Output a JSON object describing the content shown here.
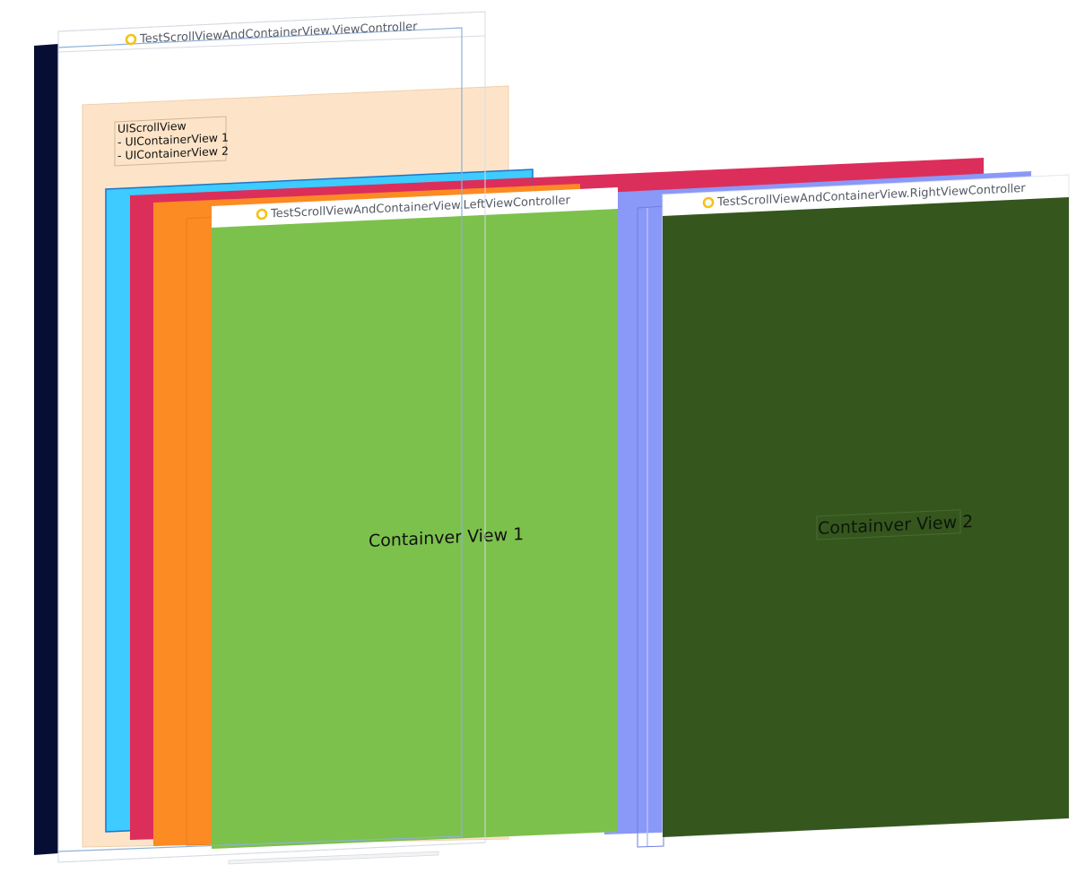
{
  "root_controller": {
    "title": "TestScrollViewAndContainerView.ViewController",
    "icon": "view-controller-icon"
  },
  "note": {
    "lines": [
      "UIScrollView",
      "- UIContainerView 1",
      "- UIContainerView 2"
    ]
  },
  "left_controller": {
    "title": "TestScrollViewAndContainerView.LeftViewController",
    "icon": "view-controller-icon",
    "label": "Containver View 1"
  },
  "right_controller": {
    "title": "TestScrollViewAndContainerView.RightViewController",
    "icon": "view-controller-icon",
    "label": "Containver View 2"
  },
  "colors": {
    "navy_side": "#060e33",
    "scroll_bg": "#fde4c8",
    "cyan": "#3ecbff",
    "crimson": "#dc2e5a",
    "orange": "#fc8b23",
    "periwinkle": "#8a98f7",
    "green": "#7cc14c",
    "dark_green": "#35571e",
    "vc_icon": "#f2c418"
  }
}
